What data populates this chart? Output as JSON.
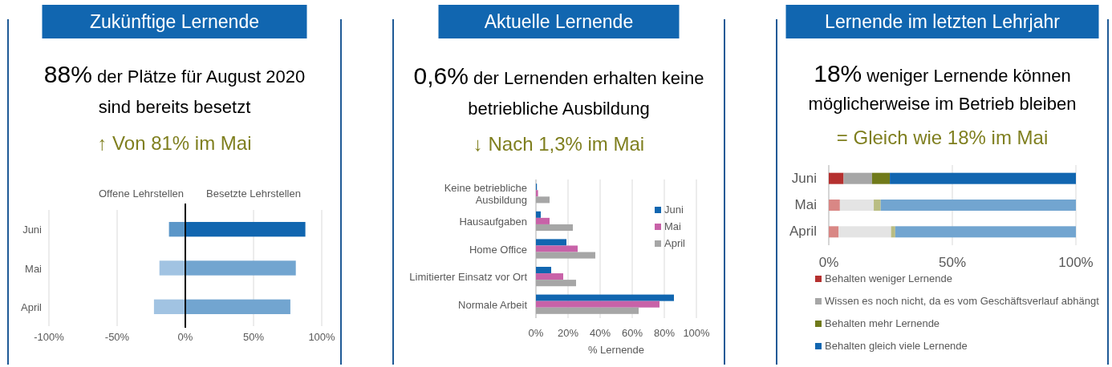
{
  "chart_data": [
    {
      "type": "bar",
      "orientation": "horizontal",
      "stacked": true,
      "title": "Zukünftige Lernende",
      "subtitle": "88% der Plätze für August 2020 sind bereits besetzt",
      "annotations": [
        "↑ Von 81% im Mai"
      ],
      "categories": [
        "Juni",
        "Mai",
        "April"
      ],
      "series": [
        {
          "name": "Offene Lehrstellen",
          "colors": [
            "#5b96c8",
            "#a1c3e2",
            "#a1c3e2"
          ],
          "values": [
            -12,
            -19,
            -23
          ]
        },
        {
          "name": "Besetzte Lehrstellen",
          "colors": [
            "#1166b0",
            "#72a5d0",
            "#72a5d0"
          ],
          "values": [
            88,
            81,
            77
          ]
        }
      ],
      "xlim": [
        -100,
        100
      ],
      "xticks": [
        {
          "value": -100,
          "label": "-100%"
        },
        {
          "value": -50,
          "label": "-50%"
        },
        {
          "value": 0,
          "label": "0%"
        },
        {
          "value": 50,
          "label": "50%"
        },
        {
          "value": 100,
          "label": "100%"
        }
      ],
      "grid": "x",
      "ref_lines": [
        {
          "axis": "x",
          "value": 0,
          "color": "#000000"
        }
      ]
    },
    {
      "type": "bar",
      "orientation": "horizontal",
      "title": "Aktuelle Lernende",
      "subtitle": "0,6% der Lernenden erhalten keine betriebliche Ausbildung",
      "annotations": [
        "↓ Nach 1,3% im Mai"
      ],
      "categories": [
        "Keine betriebliche Ausbildung",
        "Hausaufgaben",
        "Home Office",
        "Limitierter Einsatz vor Ort",
        "Normale Arbeit"
      ],
      "series": [
        {
          "name": "Juni",
          "color": "#1166b0",
          "values": [
            0.6,
            3,
            19,
            9.5,
            86
          ]
        },
        {
          "name": "Mai",
          "color": "#c862a8",
          "values": [
            1.3,
            8.5,
            26,
            17,
            77
          ]
        },
        {
          "name": "April",
          "color": "#a6a6a6",
          "values": [
            8.5,
            23,
            37,
            25,
            64
          ]
        }
      ],
      "xlim": [
        0,
        100
      ],
      "xticks": [
        {
          "value": 0,
          "label": "0%"
        },
        {
          "value": 20,
          "label": "20%"
        },
        {
          "value": 40,
          "label": "40%"
        },
        {
          "value": 60,
          "label": "60%"
        },
        {
          "value": 80,
          "label": "80%"
        },
        {
          "value": 100,
          "label": "100%"
        }
      ],
      "xlabel": "% Lernende",
      "grid": "x",
      "legend": "top right"
    },
    {
      "type": "bar",
      "orientation": "horizontal",
      "stacked": true,
      "title": "Lernende im letzten Lehrjahr",
      "subtitle": "18% weniger Lernende können möglicherweise im Betrieb bleiben",
      "annotations": [
        "= Gleich wie 18% im Mai"
      ],
      "categories": [
        "Juni",
        "Mai",
        "April"
      ],
      "series": [
        {
          "name": "Behalten weniger Lernende",
          "color": "#b5302f",
          "colors": [
            "#b5302f",
            "#d98785",
            "#d98785"
          ],
          "values": [
            6,
            4.5,
            4
          ]
        },
        {
          "name": "Wissen es noch nicht, da es vom Geschäftsverlauf abhängt",
          "color": "#a6a6a6",
          "colors": [
            "#a6a6a6",
            "#e4e4e4",
            "#e4e4e4"
          ],
          "values": [
            11.5,
            13.7,
            21.2
          ]
        },
        {
          "name": "Behalten mehr Lernende",
          "color": "#707a1a",
          "colors": [
            "#707a1a",
            "#b9bd83",
            "#b9bd83"
          ],
          "values": [
            7.2,
            2.8,
            1.7
          ]
        },
        {
          "name": "Behalten gleich viele Lernende",
          "color": "#1166b0",
          "colors": [
            "#1166b0",
            "#72a5d0",
            "#72a5d0"
          ],
          "values": [
            75.3,
            79,
            73.1
          ]
        }
      ],
      "xlim": [
        0,
        100
      ],
      "xticks": [
        {
          "value": 0,
          "label": "0%"
        },
        {
          "value": 50,
          "label": "50%"
        },
        {
          "value": 100,
          "label": "100%"
        }
      ],
      "grid": "x",
      "legend": "bottom"
    }
  ]
}
